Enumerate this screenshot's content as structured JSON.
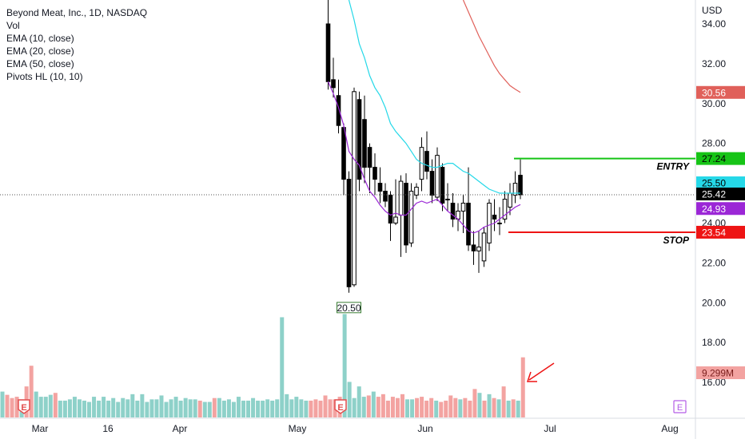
{
  "legend": {
    "title": "Beyond Meat, Inc., 1D, NASDAQ",
    "vol": "Vol",
    "ema10": "EMA (10, close)",
    "ema20": "EMA (20, close)",
    "ema50": "EMA (50, close)",
    "pivots": "Pivots HL (10, 10)"
  },
  "colors": {
    "up_vol": "#8ed1c9",
    "down_vol": "#f3a3a1",
    "ema10": "#9b27d6",
    "ema20": "#25d8e8",
    "ema50": "#e0605a",
    "entry": "#16c416",
    "stop": "#ee1414",
    "candle": "#000000",
    "arrow": "#ee1414",
    "earnings": "#e24d4d",
    "earnings_future": "#b35ce6"
  },
  "chart_data": {
    "type": "candlestick",
    "title": "Beyond Meat, Inc., 1D, NASDAQ",
    "y_unit_label": "USD",
    "ylim": [
      14.2,
      35.2
    ],
    "y_ticks": [
      "34.00",
      "32.00",
      "30.00",
      "28.00",
      "26.00",
      "24.00",
      "22.00",
      "20.00",
      "18.00",
      "16.00"
    ],
    "x_ticks": [
      "Mar",
      "16",
      "Apr",
      "May",
      "Jun",
      "Jul",
      "Aug"
    ],
    "candles": [
      {
        "o": 34.0,
        "h": 35.2,
        "l": 30.7,
        "c": 31.1
      },
      {
        "o": 31.2,
        "h": 32.3,
        "l": 30.3,
        "c": 30.8
      },
      {
        "o": 30.4,
        "h": 31.2,
        "l": 28.5,
        "c": 28.9
      },
      {
        "o": 28.8,
        "h": 29.0,
        "l": 25.4,
        "c": 26.2
      },
      {
        "o": 26.2,
        "h": 26.6,
        "l": 20.5,
        "c": 20.8
      },
      {
        "o": 20.9,
        "h": 30.8,
        "l": 20.8,
        "c": 30.6
      },
      {
        "o": 30.2,
        "h": 30.6,
        "l": 25.6,
        "c": 26.2
      },
      {
        "o": 29.2,
        "h": 30.4,
        "l": 26.0,
        "c": 26.8
      },
      {
        "o": 27.8,
        "h": 28.0,
        "l": 25.5,
        "c": 26.8
      },
      {
        "o": 26.8,
        "h": 27.5,
        "l": 25.4,
        "c": 26.2
      },
      {
        "o": 26.0,
        "h": 26.8,
        "l": 25.0,
        "c": 25.6
      },
      {
        "o": 25.6,
        "h": 26.0,
        "l": 24.8,
        "c": 25.1
      },
      {
        "o": 25.4,
        "h": 25.6,
        "l": 23.1,
        "c": 24.0
      },
      {
        "o": 24.0,
        "h": 26.2,
        "l": 23.9,
        "c": 24.3
      },
      {
        "o": 24.4,
        "h": 26.4,
        "l": 22.3,
        "c": 26.1
      },
      {
        "o": 26.0,
        "h": 26.5,
        "l": 22.5,
        "c": 22.9
      },
      {
        "o": 23.0,
        "h": 26.0,
        "l": 22.8,
        "c": 25.6
      },
      {
        "o": 25.4,
        "h": 26.0,
        "l": 25.2,
        "c": 25.8
      },
      {
        "o": 26.2,
        "h": 28.3,
        "l": 25.6,
        "c": 27.8
      },
      {
        "o": 27.6,
        "h": 28.6,
        "l": 26.2,
        "c": 26.6
      },
      {
        "o": 26.6,
        "h": 27.2,
        "l": 25.0,
        "c": 25.4
      },
      {
        "o": 25.3,
        "h": 27.8,
        "l": 25.1,
        "c": 27.4
      },
      {
        "o": 26.8,
        "h": 27.0,
        "l": 24.6,
        "c": 25.0
      },
      {
        "o": 25.2,
        "h": 26.0,
        "l": 24.6,
        "c": 25.2
      },
      {
        "o": 25.0,
        "h": 25.5,
        "l": 23.8,
        "c": 24.2
      },
      {
        "o": 24.2,
        "h": 25.0,
        "l": 23.6,
        "c": 24.6
      },
      {
        "o": 24.6,
        "h": 25.4,
        "l": 23.5,
        "c": 25.0
      },
      {
        "o": 25.0,
        "h": 26.8,
        "l": 22.6,
        "c": 22.9
      },
      {
        "o": 22.9,
        "h": 23.6,
        "l": 21.9,
        "c": 22.6
      },
      {
        "o": 22.6,
        "h": 23.6,
        "l": 21.5,
        "c": 22.8
      },
      {
        "o": 22.1,
        "h": 23.8,
        "l": 21.8,
        "c": 23.5
      },
      {
        "o": 23.0,
        "h": 25.2,
        "l": 22.6,
        "c": 25.0
      },
      {
        "o": 24.4,
        "h": 25.2,
        "l": 23.6,
        "c": 24.2
      },
      {
        "o": 24.0,
        "h": 24.8,
        "l": 23.4,
        "c": 24.0
      },
      {
        "o": 24.2,
        "h": 25.6,
        "l": 24.0,
        "c": 25.2
      },
      {
        "o": 24.8,
        "h": 26.0,
        "l": 24.4,
        "c": 25.5
      },
      {
        "o": 25.4,
        "h": 26.6,
        "l": 25.0,
        "c": 26.0
      },
      {
        "o": 26.4,
        "h": 27.2,
        "l": 25.2,
        "c": 25.42
      }
    ],
    "ema10": [
      31.1,
      30.5,
      29.8,
      28.9,
      27.6,
      27.2,
      26.9,
      26.2,
      25.6,
      25.3,
      24.9,
      24.6,
      24.4,
      24.5,
      24.4,
      24.4,
      24.7,
      25.0,
      25.1,
      25.0,
      25.1,
      25.2,
      24.9,
      24.6,
      24.4,
      24.2,
      23.9,
      23.6,
      23.5,
      23.6,
      23.8,
      23.9,
      24.0,
      24.2,
      24.4,
      24.6,
      24.8,
      24.93
    ],
    "ema20": [
      35.2,
      34.2,
      33.0,
      32.3,
      31.4,
      30.8,
      30.4,
      29.8,
      29.0,
      28.6,
      28.3,
      28.0,
      27.6,
      27.2,
      27.0,
      26.9,
      26.8,
      26.8,
      26.9,
      27.0,
      27.0,
      26.8,
      26.6,
      26.5,
      26.3,
      26.1,
      25.9,
      25.7,
      25.6,
      25.5,
      25.5,
      25.5,
      25.5,
      25.5
    ],
    "ema50": [
      35.2,
      34.6,
      34.0,
      33.4,
      32.9,
      32.4,
      31.9,
      31.5,
      31.2,
      30.9,
      30.72,
      30.56
    ],
    "volume_millions": [
      4.0,
      3.5,
      3.0,
      3.2,
      2.8,
      4.8,
      8.0,
      4.0,
      3.2,
      3.2,
      3.5,
      3.8,
      2.6,
      2.6,
      2.8,
      3.2,
      2.8,
      2.6,
      2.4,
      3.2,
      2.6,
      3.2,
      2.6,
      3.0,
      2.4,
      3.0,
      2.8,
      3.6,
      2.6,
      3.6,
      2.4,
      2.8,
      2.8,
      3.4,
      2.4,
      2.8,
      3.2,
      2.6,
      3.0,
      2.8,
      2.8,
      2.6,
      2.4,
      2.4,
      3.0,
      3.0,
      2.6,
      2.8,
      2.4,
      3.2,
      2.6,
      2.6,
      3.0,
      2.6,
      2.6,
      2.8,
      2.6,
      2.8,
      15.5,
      3.6,
      2.8,
      3.2,
      2.8,
      2.6,
      2.6,
      2.8,
      2.6,
      3.4,
      2.8,
      2.8,
      3.2,
      16.0,
      5.5,
      3.0,
      4.8,
      3.2,
      3.4,
      4.0,
      3.2,
      3.6,
      2.6,
      3.2,
      3.0,
      3.6,
      2.8,
      2.8,
      3.0,
      3.2,
      2.6,
      3.0,
      2.6,
      2.4,
      2.6,
      3.4,
      3.0,
      2.8,
      3.0,
      2.6,
      4.4,
      3.8,
      2.6,
      3.6,
      3.0,
      2.8,
      4.8,
      2.6,
      2.8,
      2.6,
      9.299
    ],
    "volume_down_idx": [
      1,
      2,
      3,
      5,
      6,
      11,
      41,
      44,
      64,
      65,
      66,
      67,
      68,
      69,
      70,
      76,
      78,
      79,
      80,
      81,
      82,
      83,
      86,
      87,
      88,
      89,
      91,
      92,
      93,
      94,
      96,
      97,
      98,
      100,
      102,
      104,
      106,
      108
    ],
    "pivot_low_label": "20.50",
    "price_tags": {
      "ema50": "30.56",
      "entry": "27.24",
      "ema20": "25.50",
      "last": "25.42",
      "ema10": "24.93",
      "stop": "23.54",
      "volume": "9.299M"
    },
    "entry_price": 27.24,
    "stop_price": 23.54,
    "last_price": 25.42,
    "annotations": {
      "entry_label": "ENTRY",
      "stop_label": "STOP"
    },
    "earnings_marker": "E"
  }
}
